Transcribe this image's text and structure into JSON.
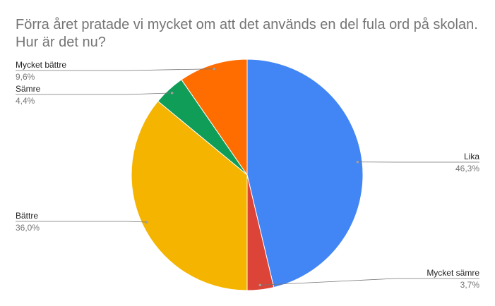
{
  "chart_data": {
    "type": "pie",
    "title": [
      "Förra året pratade vi mycket om att det används en del fula ord på skolan.",
      "Hur är det nu?"
    ],
    "categories": [
      "Lika",
      "Mycket sämre",
      "Bättre",
      "Sämre",
      "Mycket bättre"
    ],
    "values": [
      46.3,
      3.7,
      36.0,
      4.4,
      9.6
    ],
    "value_labels": [
      "46,3%",
      "3,7%",
      "36,0%",
      "4,4%",
      "9,6%"
    ],
    "colors": [
      "#4285f4",
      "#db4437",
      "#f4b400",
      "#0f9d58",
      "#ff6d00"
    ]
  }
}
